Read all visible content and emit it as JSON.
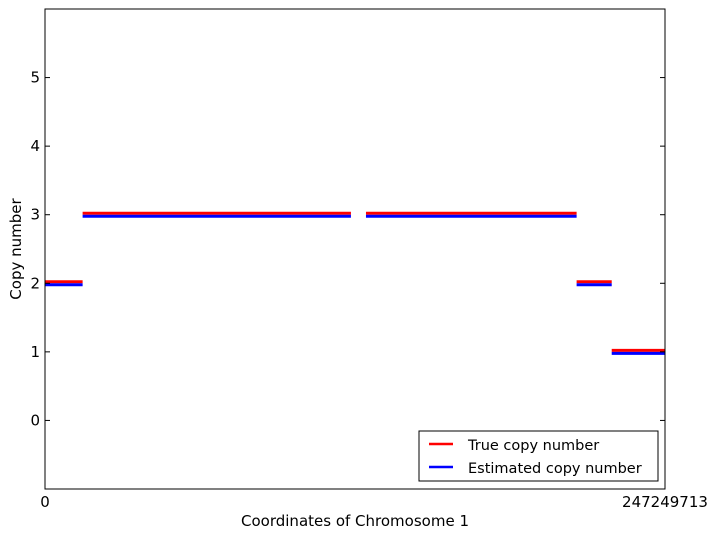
{
  "chart_data": {
    "type": "step",
    "xlabel": "Coordinates of Chromosome 1",
    "ylabel": "Copy number",
    "xlim": [
      0,
      247249713
    ],
    "ylim": [
      -1,
      6
    ],
    "x_tick_labels": [
      "0",
      "247249713"
    ],
    "y_ticks": [
      0,
      1,
      2,
      3,
      4,
      5
    ],
    "legend_position": "lower-right",
    "series": [
      {
        "name": "True copy number",
        "color": "#ff0000",
        "segments": [
          {
            "x_start": 0,
            "x_end": 15000000,
            "value": 2
          },
          {
            "x_start": 15000000,
            "x_end": 122000000,
            "value": 3
          },
          {
            "x_start": 128000000,
            "x_end": 212000000,
            "value": 3
          },
          {
            "x_start": 212000000,
            "x_end": 226000000,
            "value": 2
          },
          {
            "x_start": 226000000,
            "x_end": 247249713,
            "value": 1
          }
        ]
      },
      {
        "name": "Estimated copy number",
        "color": "#0000ff",
        "segments": [
          {
            "x_start": 0,
            "x_end": 15000000,
            "value": 2
          },
          {
            "x_start": 15000000,
            "x_end": 122000000,
            "value": 3
          },
          {
            "x_start": 128000000,
            "x_end": 212000000,
            "value": 3
          },
          {
            "x_start": 212000000,
            "x_end": 226000000,
            "value": 2
          },
          {
            "x_start": 226000000,
            "x_end": 247249713,
            "value": 1
          }
        ]
      }
    ]
  }
}
